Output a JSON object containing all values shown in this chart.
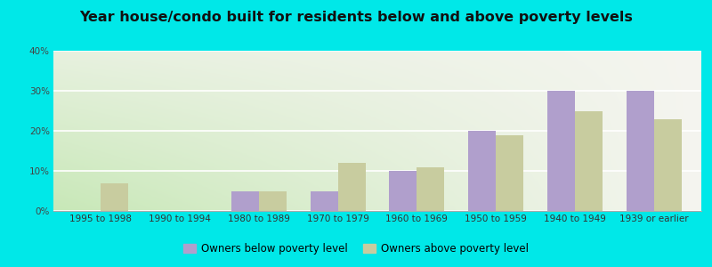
{
  "title": "Year house/condo built for residents below and above poverty levels",
  "categories": [
    "1995 to 1998",
    "1990 to 1994",
    "1980 to 1989",
    "1970 to 1979",
    "1960 to 1969",
    "1950 to 1959",
    "1940 to 1949",
    "1939 or earlier"
  ],
  "below_poverty": [
    0,
    0,
    5,
    5,
    10,
    20,
    30,
    30
  ],
  "above_poverty": [
    7,
    0,
    5,
    12,
    11,
    19,
    25,
    23
  ],
  "below_color": "#b09fcc",
  "above_color": "#c8cc9f",
  "outer_bg": "#00e8e8",
  "ylim": [
    0,
    40
  ],
  "yticks": [
    0,
    10,
    20,
    30,
    40
  ],
  "legend_below": "Owners below poverty level",
  "legend_above": "Owners above poverty level",
  "bar_width": 0.35,
  "title_fontsize": 11.5,
  "tick_fontsize": 7.5,
  "legend_fontsize": 8.5,
  "gradient_left": "#c8e8b8",
  "gradient_right": "#f8f8f0",
  "grid_color": "#e0e0e0"
}
